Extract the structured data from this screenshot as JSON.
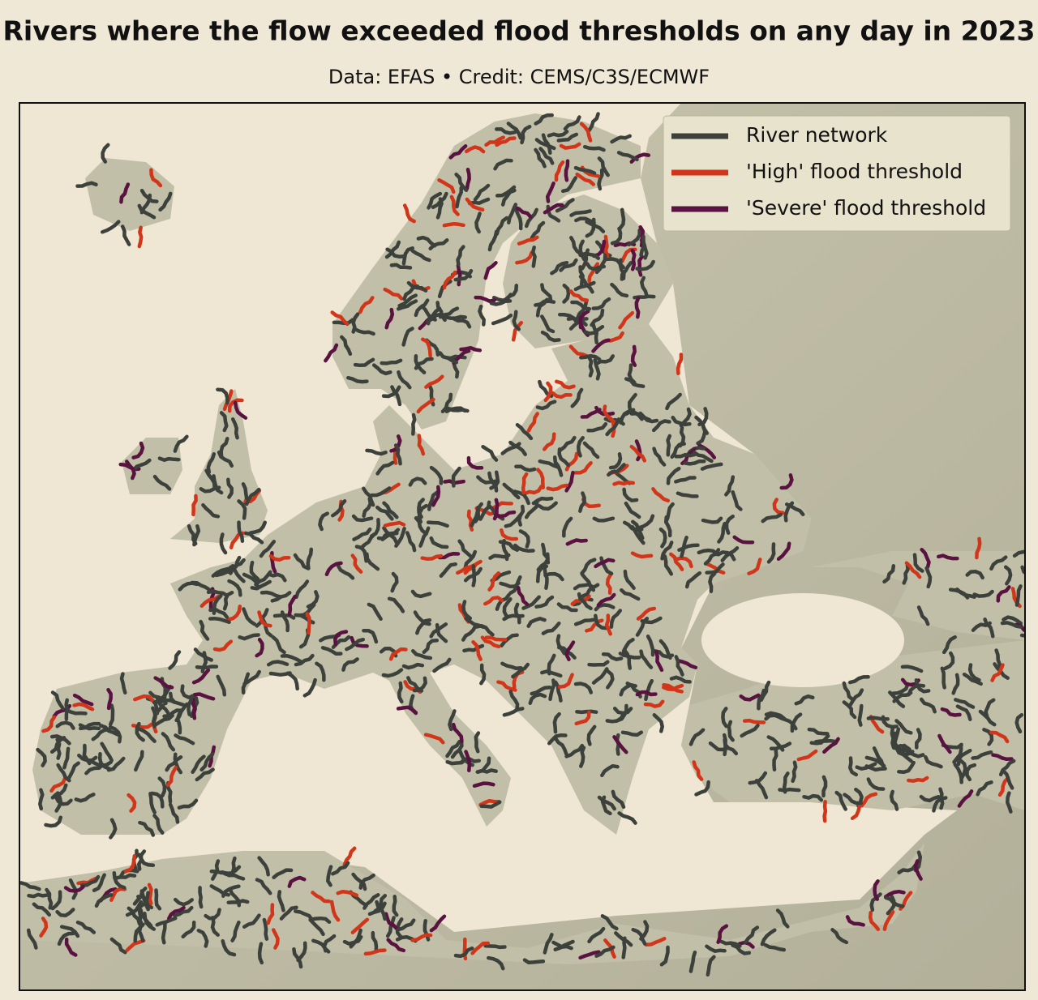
{
  "title": "Rivers where the flow exceeded flood thresholds on any day in 2023",
  "subtitle": "Data: EFAS • Credit: CEMS/C3S/ECMWF",
  "legend": [
    {
      "label": "River network",
      "color": "#3c413c"
    },
    {
      "label": "'High' flood threshold",
      "color": "#d2361a"
    },
    {
      "label": "'Severe' flood threshold",
      "color": "#5a1240"
    }
  ]
}
